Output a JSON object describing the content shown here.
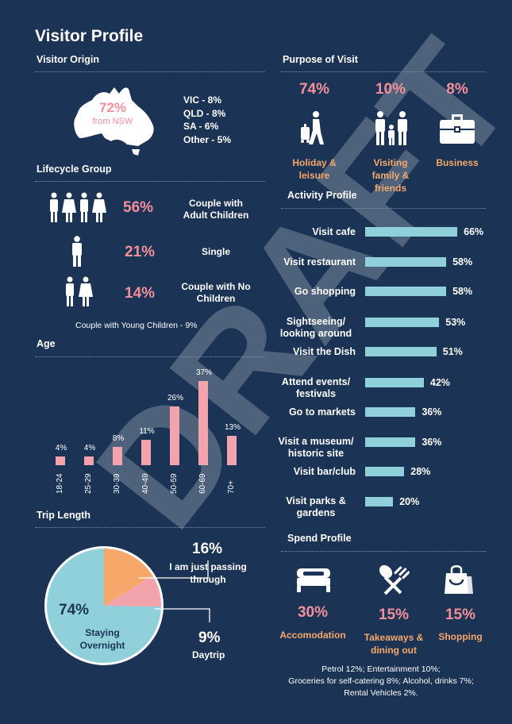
{
  "page_title": "Visitor Profile",
  "watermark": "DRAFT",
  "visitor_origin": {
    "heading": "Visitor Origin",
    "main_value": "72%",
    "main_label": "from NSW",
    "others": [
      "VIC - 8%",
      "QLD - 8%",
      "SA - 6%",
      "Other - 5%"
    ]
  },
  "purpose": {
    "heading": "Purpose of Visit",
    "items": [
      {
        "value": "74%",
        "label": "Holiday & leisure",
        "icon": "walking-traveller-icon"
      },
      {
        "value": "10%",
        "label": "Visiting family & friends",
        "icon": "family-icon"
      },
      {
        "value": "8%",
        "label": "Business",
        "icon": "briefcase-icon"
      }
    ]
  },
  "lifecycle": {
    "heading": "Lifecycle Group",
    "items": [
      {
        "value": "56%",
        "label": "Couple with Adult Children"
      },
      {
        "value": "21%",
        "label": "Single"
      },
      {
        "value": "14%",
        "label": "Couple with No Children"
      }
    ],
    "note": "Couple with Young Children - 9%"
  },
  "activity": {
    "heading": "Activity Profile",
    "items": [
      {
        "label": "Visit cafe",
        "value": 66,
        "text": "66%"
      },
      {
        "label": "Visit restaurant",
        "value": 58,
        "text": "58%"
      },
      {
        "label": "Go shopping",
        "value": 58,
        "text": "58%"
      },
      {
        "label": "Sightseeing/ looking around",
        "value": 53,
        "text": "53%"
      },
      {
        "label": "Visit the Dish",
        "value": 51,
        "text": "51%"
      },
      {
        "label": "Attend events/ festivals",
        "value": 42,
        "text": "42%"
      },
      {
        "label": "Go to markets",
        "value": 36,
        "text": "36%"
      },
      {
        "label": "Visit a museum/ historic site",
        "value": 36,
        "text": "36%"
      },
      {
        "label": "Visit bar/club",
        "value": 28,
        "text": "28%"
      },
      {
        "label": "Visit parks & gardens",
        "value": 20,
        "text": "20%"
      }
    ]
  },
  "chart_data": {
    "type": "bar",
    "title": "Age",
    "categories": [
      "18-24",
      "25-29",
      "30-39",
      "40-49",
      "50-59",
      "60-69",
      "70+"
    ],
    "values": [
      4,
      4,
      8,
      11,
      26,
      37,
      13
    ],
    "value_labels": [
      "4%",
      "4%",
      "8%",
      "11%",
      "26%",
      "37%",
      "13%"
    ],
    "ylim": [
      0,
      37
    ],
    "color": "#f2a3ab"
  },
  "trip_length": {
    "heading": "Trip Length",
    "slices": [
      {
        "label": "I am just passing through",
        "value": 16,
        "text": "16%",
        "color": "#f5a86a"
      },
      {
        "label": "Daytrip",
        "value": 9,
        "text": "9%",
        "color": "#f2a3ab"
      },
      {
        "label": "Staying Overnight",
        "value": 74,
        "text": "74%",
        "color": "#8fd0db"
      }
    ]
  },
  "spend": {
    "heading": "Spend Profile",
    "items": [
      {
        "value": "30%",
        "label": "Accomodation",
        "icon": "bed-icon"
      },
      {
        "value": "15%",
        "label": "Takeaways & dining out",
        "icon": "cutlery-icon"
      },
      {
        "value": "15%",
        "label": "Shopping",
        "icon": "shopping-bag-icon"
      }
    ],
    "note_lines": [
      "Petrol 12%; Entertainment 10%;",
      "Groceries for self-catering 8%; Alcohol, drinks 7%;",
      "Rental Vehicles 2%."
    ]
  },
  "colors": {
    "background": "#1b3354",
    "pink": "#f48f9a",
    "orange": "#f5a86a",
    "teal": "#8fd0db"
  }
}
